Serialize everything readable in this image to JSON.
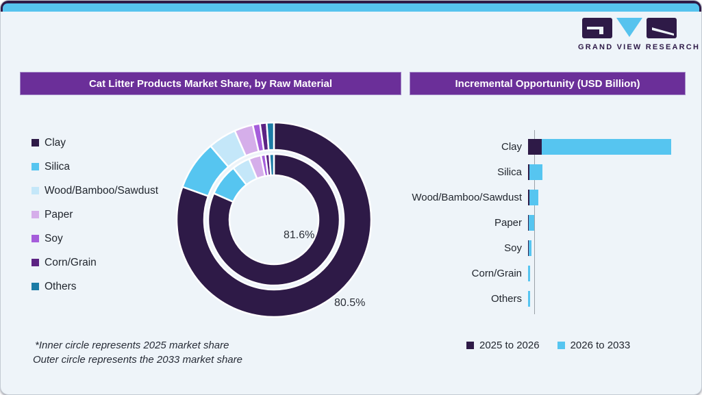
{
  "brand": {
    "name": "GRAND VIEW RESEARCH",
    "colors": {
      "dark_purple": "#2e1a47",
      "light_blue": "#56c3ee"
    }
  },
  "left_panel": {
    "title": "Cat Litter Products Market Share, by Raw Material",
    "donut_labels": {
      "inner": "81.6%",
      "outer": "80.5%"
    },
    "footnote_line1": "*Inner circle represents 2025 market share",
    "footnote_line2": "Outer circle represents the 2033 market share"
  },
  "right_panel": {
    "title": "Incremental Opportunity (USD Billion)"
  },
  "chart_data": [
    {
      "type": "pie",
      "subtype": "double-ring donut",
      "title": "Cat Litter Products Market Share, by Raw Material",
      "categories": [
        "Clay",
        "Silica",
        "Wood/Bamboo/Sawdust",
        "Paper",
        "Soy",
        "Corn/Grain",
        "Others"
      ],
      "colors": [
        "#2e1a47",
        "#56c5f0",
        "#c4e7f9",
        "#d5aeea",
        "#a55ddb",
        "#5c2383",
        "#1c7ca6"
      ],
      "series": [
        {
          "name": "2025 market share (inner circle)",
          "values": [
            81.6,
            7.8,
            4.4,
            3.0,
            1.1,
            1.0,
            1.1
          ]
        },
        {
          "name": "2033 market share (outer circle)",
          "values": [
            80.5,
            8.2,
            4.7,
            3.1,
            1.2,
            1.1,
            1.2
          ]
        }
      ],
      "data_labels": {
        "inner_clay": "81.6%",
        "outer_clay": "80.5%"
      },
      "legend_position": "left",
      "start_angle_deg": -90,
      "direction": "clockwise"
    },
    {
      "type": "bar",
      "orientation": "horizontal",
      "stacked": true,
      "title": "Incremental Opportunity (USD Billion)",
      "categories": [
        "Clay",
        "Silica",
        "Wood/Bamboo/Sawdust",
        "Paper",
        "Soy",
        "Corn/Grain",
        "Others"
      ],
      "series": [
        {
          "name": "2025 to 2026",
          "color": "#2e1a47",
          "values": [
            0.2,
            0.02,
            0.015,
            0.01,
            0.006,
            0.004,
            0.004
          ]
        },
        {
          "name": "2026 to 2033",
          "color": "#56c5f0",
          "values": [
            1.89,
            0.19,
            0.135,
            0.083,
            0.044,
            0.023,
            0.023
          ]
        }
      ],
      "xlim": [
        0,
        2.1
      ],
      "value_axis_labels_visible": false,
      "legend_position": "bottom"
    }
  ]
}
